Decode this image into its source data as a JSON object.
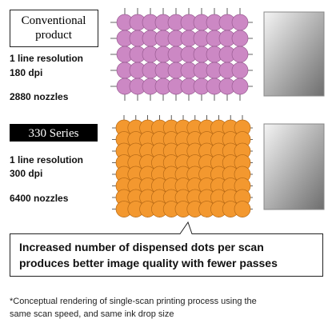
{
  "conventional": {
    "label": [
      "Conventional",
      "product"
    ],
    "line1": "1 line resolution",
    "line2": "180 dpi",
    "line3": "2880 nozzles"
  },
  "series330": {
    "label": "330 Series",
    "line1": "1 line resolution",
    "line2": "300 dpi",
    "line3": "6400 nozzles"
  },
  "callout": [
    "Increased number of dispensed dots per scan",
    "produces better image quality with fewer passes"
  ],
  "footnote": [
    "*Conceptual rendering of single-scan printing process using the",
    "same scan speed, and same ink drop size"
  ]
}
